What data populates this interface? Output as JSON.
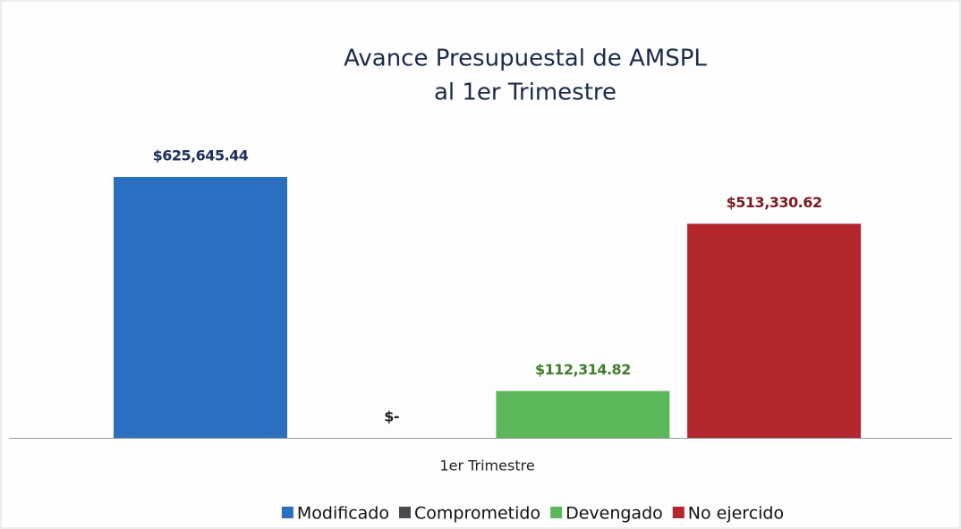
{
  "chart_data": {
    "type": "bar",
    "title": "Avance Presupuestal de AMSPL",
    "subtitle": "al 1er Trimestre",
    "categories": [
      "1er Trimestre"
    ],
    "series": [
      {
        "name": "Modificado",
        "color": "#2b6fc0",
        "label_color": "#1c2f5e",
        "values": [
          625645.44
        ],
        "value_labels": [
          "$625,645.44"
        ]
      },
      {
        "name": "Comprometido",
        "color": "#4a4a4f",
        "label_color": "#222222",
        "values": [
          0
        ],
        "value_labels": [
          "$-"
        ]
      },
      {
        "name": "Devengado",
        "color": "#5bb85a",
        "label_color": "#3f7f2a",
        "values": [
          112314.82
        ],
        "value_labels": [
          "$112,314.82"
        ]
      },
      {
        "name": "No ejercido",
        "color": "#b3262e",
        "label_color": "#7a1a24",
        "values": [
          513330.62
        ],
        "value_labels": [
          "$513,330.62"
        ]
      }
    ],
    "legend": "bottom",
    "grid": false
  }
}
